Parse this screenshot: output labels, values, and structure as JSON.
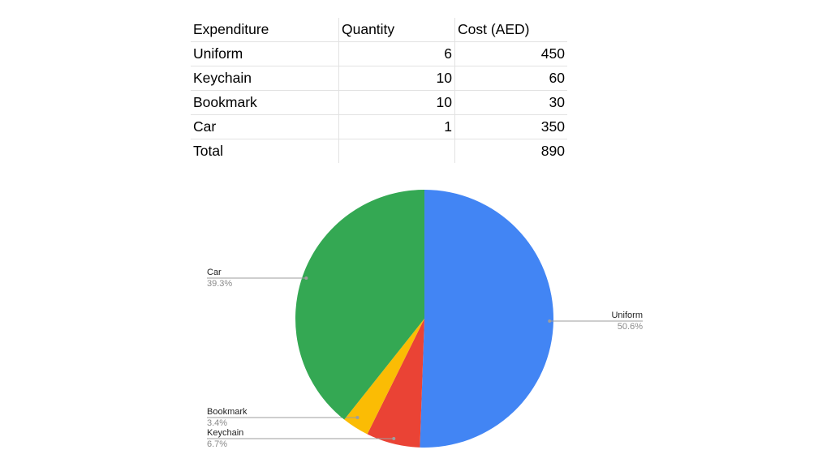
{
  "table": {
    "headers": [
      "Expenditure",
      "Quantity",
      "Cost (AED)"
    ],
    "rows": [
      [
        "Uniform",
        "6",
        "450"
      ],
      [
        "Keychain",
        "10",
        "60"
      ],
      [
        "Bookmark",
        "10",
        "30"
      ],
      [
        "Car",
        "1",
        "350"
      ],
      [
        "Total",
        "",
        "890"
      ]
    ]
  },
  "chart_data": {
    "type": "pie",
    "categories": [
      "Uniform",
      "Keychain",
      "Bookmark",
      "Car"
    ],
    "values": [
      450,
      60,
      30,
      350
    ],
    "percent_labels": [
      "50.6%",
      "6.7%",
      "3.4%",
      "39.3%"
    ],
    "colors": [
      "#4285f4",
      "#ea4335",
      "#fbbc04",
      "#34a853"
    ],
    "legend": "labels beside slices"
  }
}
